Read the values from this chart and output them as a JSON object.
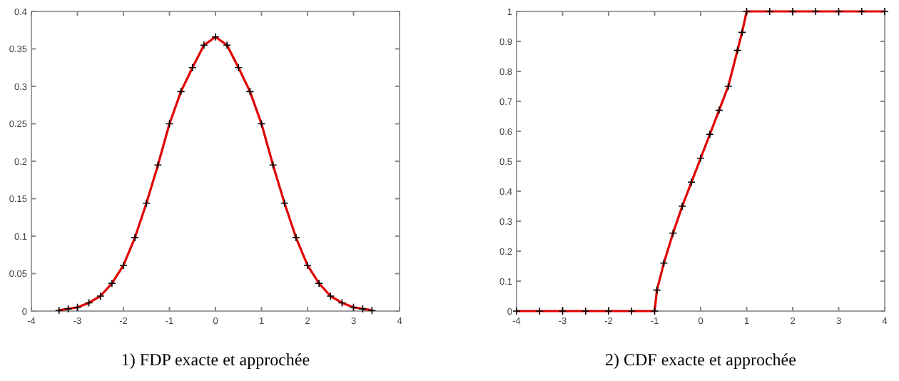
{
  "chart_data": [
    {
      "type": "line",
      "title": "1) FDP exacte et approchée",
      "xlim": [
        -4,
        4
      ],
      "xticks": [
        -4,
        -3,
        -2,
        -1,
        0,
        1,
        2,
        3,
        4
      ],
      "ylim": [
        0,
        0.4
      ],
      "yticks": [
        0,
        0.05,
        0.1,
        0.15,
        0.2,
        0.25,
        0.3,
        0.35,
        0.4
      ],
      "grid": false,
      "x": [
        -3.4,
        -3.2,
        -3,
        -2.75,
        -2.5,
        -2.25,
        -2,
        -1.75,
        -1.5,
        -1.25,
        -1,
        -0.75,
        -0.5,
        -0.25,
        0,
        0.25,
        0.5,
        0.75,
        1,
        1.25,
        1.5,
        1.75,
        2,
        2.25,
        2.5,
        2.75,
        3,
        3.2,
        3.4
      ],
      "series": [
        {
          "color": "#e00000",
          "marker": "none",
          "values": [
            0.001,
            0.003,
            0.005,
            0.011,
            0.02,
            0.037,
            0.061,
            0.098,
            0.144,
            0.195,
            0.25,
            0.293,
            0.325,
            0.355,
            0.366,
            0.355,
            0.325,
            0.293,
            0.25,
            0.195,
            0.144,
            0.098,
            0.061,
            0.037,
            0.02,
            0.011,
            0.005,
            0.003,
            0.001
          ]
        },
        {
          "type": "scatter",
          "color": "#000000",
          "marker": "cross",
          "values": [
            0.001,
            0.003,
            0.005,
            0.011,
            0.02,
            0.037,
            0.061,
            0.098,
            0.144,
            0.195,
            0.25,
            0.293,
            0.325,
            0.355,
            0.366,
            0.355,
            0.325,
            0.293,
            0.25,
            0.195,
            0.144,
            0.098,
            0.061,
            0.037,
            0.02,
            0.011,
            0.005,
            0.003,
            0.001
          ]
        }
      ]
    },
    {
      "type": "line",
      "title": "2) CDF exacte et approchée",
      "xlim": [
        -4,
        4
      ],
      "xticks": [
        -4,
        -3,
        -2,
        -1,
        0,
        1,
        2,
        3,
        4
      ],
      "ylim": [
        0,
        1
      ],
      "yticks": [
        0,
        0.1,
        0.2,
        0.3,
        0.4,
        0.5,
        0.6,
        0.7,
        0.8,
        0.9,
        1
      ],
      "grid": false,
      "x": [
        -4,
        -3.5,
        -3,
        -2.5,
        -2,
        -1.5,
        -1,
        -0.95,
        -0.8,
        -0.6,
        -0.4,
        -0.2,
        0,
        0.2,
        0.4,
        0.6,
        0.8,
        0.9,
        1,
        1.5,
        2,
        2.5,
        3,
        3.5,
        4
      ],
      "series": [
        {
          "color": "#e00000",
          "marker": "none",
          "values": [
            0,
            0,
            0,
            0,
            0,
            0,
            0,
            0.07,
            0.16,
            0.26,
            0.35,
            0.43,
            0.51,
            0.59,
            0.67,
            0.75,
            0.87,
            0.93,
            1,
            1,
            1,
            1,
            1,
            1,
            1
          ]
        },
        {
          "type": "scatter",
          "color": "#000000",
          "marker": "cross",
          "values": [
            0,
            0,
            0,
            0,
            0,
            0,
            0,
            0.07,
            0.16,
            0.26,
            0.35,
            0.43,
            0.51,
            0.59,
            0.67,
            0.75,
            0.87,
            0.93,
            1,
            1,
            1,
            1,
            1,
            1,
            1
          ]
        }
      ]
    }
  ]
}
